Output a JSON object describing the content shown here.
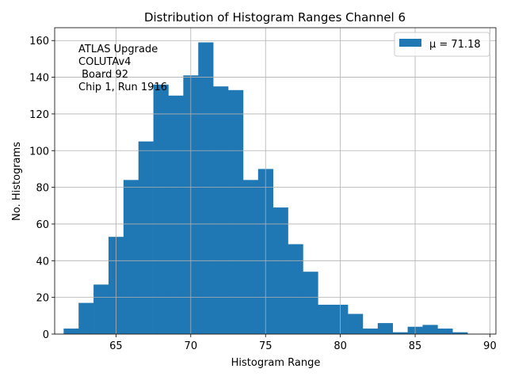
{
  "chart_data": {
    "type": "bar",
    "title": "Distribution of Histogram Ranges Channel 6",
    "xlabel": "Histogram Range",
    "ylabel": "No. Histograms",
    "xlim": [
      60.9,
      90.4
    ],
    "ylim": [
      0,
      167
    ],
    "xticks": [
      65,
      70,
      75,
      80,
      85,
      90
    ],
    "yticks": [
      0,
      20,
      40,
      60,
      80,
      100,
      120,
      140,
      160
    ],
    "grid": true,
    "bar_color": "#1f77b4",
    "bin_start": 61.5,
    "bin_width": 1.0,
    "values": [
      3,
      17,
      27,
      53,
      84,
      105,
      136,
      130,
      141,
      159,
      135,
      133,
      84,
      90,
      69,
      49,
      34,
      16,
      16,
      11,
      3,
      6,
      1,
      4,
      5,
      3,
      1
    ],
    "legend": {
      "label": "μ = 71.18",
      "placement": "top-right"
    },
    "annotation": [
      "ATLAS Upgrade",
      "COLUTAv4",
      " Board 92",
      "Chip 1, Run 1916"
    ]
  }
}
